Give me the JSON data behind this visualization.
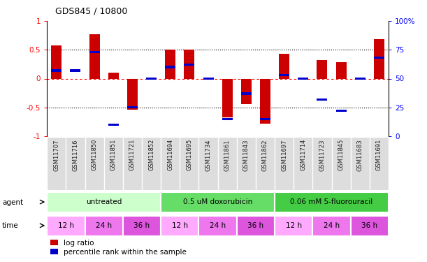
{
  "title": "GDS845 / 10800",
  "samples": [
    "GSM11707",
    "GSM11716",
    "GSM11850",
    "GSM11851",
    "GSM11721",
    "GSM11852",
    "GSM11694",
    "GSM11695",
    "GSM11734",
    "GSM11861",
    "GSM11843",
    "GSM11862",
    "GSM11697",
    "GSM11714",
    "GSM11723",
    "GSM11845",
    "GSM11683",
    "GSM11691"
  ],
  "log_ratio": [
    0.57,
    0.0,
    0.77,
    0.1,
    -0.54,
    0.0,
    0.5,
    0.5,
    0.0,
    -0.67,
    -0.44,
    -0.78,
    0.43,
    0.0,
    0.32,
    0.28,
    0.0,
    0.68
  ],
  "pct_rank": [
    57,
    57,
    73,
    10,
    25,
    50,
    60,
    62,
    50,
    15,
    37,
    15,
    53,
    50,
    32,
    22,
    50,
    68
  ],
  "log_ratio_color": "#cc0000",
  "percentile_color": "#0000cc",
  "ylim_left": [
    -1.0,
    1.0
  ],
  "ylim_right": [
    0,
    100
  ],
  "yticks_left": [
    -1,
    -0.5,
    0,
    0.5,
    1
  ],
  "ytick_labels_left": [
    "-1",
    "-0.5",
    "0",
    "0.5",
    "1"
  ],
  "yticks_right": [
    0,
    25,
    50,
    75,
    100
  ],
  "ytick_labels_right": [
    "0",
    "25",
    "50",
    "75",
    "100%"
  ],
  "hlines_dotted": [
    0.5,
    -0.5
  ],
  "hline_red": 0.0,
  "agent_groups": [
    {
      "label": "untreated",
      "start": 0,
      "end": 6,
      "color": "#ccffcc"
    },
    {
      "label": "0.5 uM doxorubicin",
      "start": 6,
      "end": 12,
      "color": "#66dd66"
    },
    {
      "label": "0.06 mM 5-fluorouracil",
      "start": 12,
      "end": 18,
      "color": "#44cc44"
    }
  ],
  "time_groups": [
    {
      "label": "12 h",
      "start": 0,
      "end": 2,
      "color": "#ffaaff"
    },
    {
      "label": "24 h",
      "start": 2,
      "end": 4,
      "color": "#ee77ee"
    },
    {
      "label": "36 h",
      "start": 4,
      "end": 6,
      "color": "#dd55dd"
    },
    {
      "label": "12 h",
      "start": 6,
      "end": 8,
      "color": "#ffaaff"
    },
    {
      "label": "24 h",
      "start": 8,
      "end": 10,
      "color": "#ee77ee"
    },
    {
      "label": "36 h",
      "start": 10,
      "end": 12,
      "color": "#dd55dd"
    },
    {
      "label": "12 h",
      "start": 12,
      "end": 14,
      "color": "#ffaaff"
    },
    {
      "label": "24 h",
      "start": 14,
      "end": 16,
      "color": "#ee77ee"
    },
    {
      "label": "36 h",
      "start": 16,
      "end": 18,
      "color": "#dd55dd"
    }
  ],
  "legend_log_ratio": "log ratio",
  "legend_percentile": "percentile rank within the sample"
}
